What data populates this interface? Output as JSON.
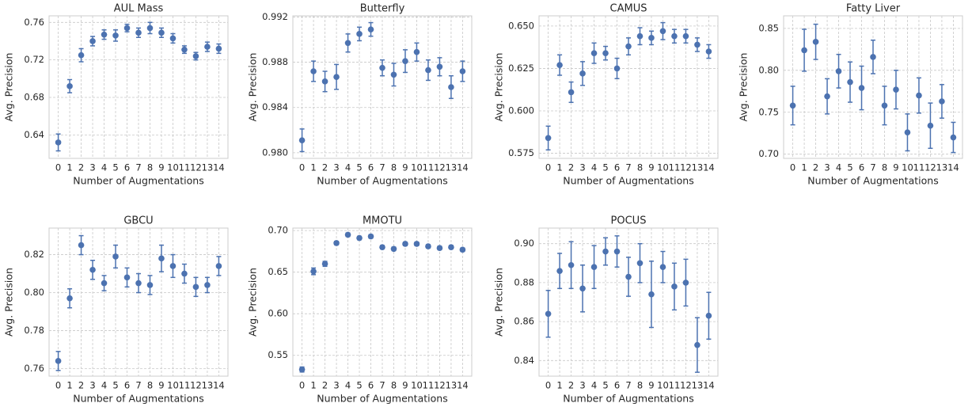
{
  "chart_data": [
    {
      "type": "errorbar",
      "title": "AUL Mass",
      "xlabel": "Number of Augmentations",
      "ylabel": "Avg. Precision",
      "categories": [
        "0",
        "1",
        "2",
        "3",
        "4",
        "5",
        "6",
        "7",
        "8",
        "9",
        "10",
        "11",
        "12",
        "13",
        "14"
      ],
      "values": [
        0.632,
        0.692,
        0.725,
        0.74,
        0.747,
        0.746,
        0.754,
        0.749,
        0.754,
        0.749,
        0.743,
        0.731,
        0.724,
        0.734,
        0.732
      ],
      "errors": [
        0.009,
        0.007,
        0.007,
        0.005,
        0.005,
        0.006,
        0.004,
        0.005,
        0.006,
        0.005,
        0.005,
        0.004,
        0.004,
        0.005,
        0.005
      ],
      "color": "#4c72b0",
      "ylim": [
        0.615,
        0.767
      ],
      "yticks": [
        0.64,
        0.68,
        0.72,
        0.76
      ],
      "grid": true
    },
    {
      "type": "errorbar",
      "title": "Butterfly",
      "xlabel": "Number of Augmentations",
      "ylabel": "Avg. Precision",
      "categories": [
        "0",
        "1",
        "2",
        "3",
        "4",
        "5",
        "6",
        "7",
        "8",
        "9",
        "10",
        "11",
        "12",
        "13",
        "14"
      ],
      "values": [
        0.9811,
        0.9872,
        0.9863,
        0.9867,
        0.9897,
        0.9905,
        0.9909,
        0.9875,
        0.9869,
        0.9881,
        0.9889,
        0.9873,
        0.9876,
        0.9858,
        0.9872
      ],
      "errors": [
        0.001,
        0.0009,
        0.0009,
        0.0011,
        0.0008,
        0.0006,
        0.0006,
        0.0007,
        0.001,
        0.001,
        0.0008,
        0.0009,
        0.0008,
        0.001,
        0.0009
      ],
      "color": "#4c72b0",
      "ylim": [
        0.9795,
        0.9921
      ],
      "yticks": [
        {
          "value": 0.98,
          "label": "0.980"
        },
        0.984,
        0.988,
        0.992
      ],
      "grid": true
    },
    {
      "type": "errorbar",
      "title": "CAMUS",
      "xlabel": "Number of Augmentations",
      "ylabel": "Avg. Precision",
      "categories": [
        "0",
        "1",
        "2",
        "3",
        "4",
        "5",
        "6",
        "7",
        "8",
        "9",
        "10",
        "11",
        "12",
        "13",
        "14"
      ],
      "values": [
        0.584,
        0.627,
        0.611,
        0.622,
        0.634,
        0.634,
        0.625,
        0.638,
        0.644,
        0.643,
        0.647,
        0.644,
        0.644,
        0.639,
        0.635
      ],
      "errors": [
        0.007,
        0.006,
        0.006,
        0.007,
        0.006,
        0.004,
        0.006,
        0.005,
        0.005,
        0.004,
        0.005,
        0.004,
        0.004,
        0.004,
        0.004
      ],
      "color": "#4c72b0",
      "ylim": [
        0.572,
        0.656
      ],
      "yticks": [
        0.575,
        {
          "value": 0.6,
          "label": "0.600"
        },
        0.625,
        {
          "value": 0.65,
          "label": "0.650"
        }
      ],
      "grid": true
    },
    {
      "type": "errorbar",
      "title": "Fatty Liver",
      "xlabel": "Number of Augmentations",
      "ylabel": "Avg. Precision",
      "categories": [
        "0",
        "1",
        "2",
        "3",
        "4",
        "5",
        "6",
        "7",
        "8",
        "9",
        "10",
        "11",
        "12",
        "13",
        "14"
      ],
      "values": [
        0.758,
        0.824,
        0.834,
        0.769,
        0.799,
        0.786,
        0.779,
        0.816,
        0.758,
        0.777,
        0.726,
        0.77,
        0.734,
        0.763,
        0.72
      ],
      "errors": [
        0.023,
        0.025,
        0.021,
        0.021,
        0.02,
        0.024,
        0.026,
        0.02,
        0.023,
        0.023,
        0.022,
        0.021,
        0.027,
        0.02,
        0.018
      ],
      "color": "#4c72b0",
      "ylim": [
        0.695,
        0.865
      ],
      "yticks": [
        {
          "value": 0.7,
          "label": "0.70"
        },
        0.75,
        {
          "value": 0.8,
          "label": "0.80"
        },
        0.85
      ],
      "grid": true
    },
    {
      "type": "errorbar",
      "title": "GBCU",
      "xlabel": "Number of Augmentations",
      "ylabel": "Avg. Precision",
      "categories": [
        "0",
        "1",
        "2",
        "3",
        "4",
        "5",
        "6",
        "7",
        "8",
        "9",
        "10",
        "11",
        "12",
        "13",
        "14"
      ],
      "values": [
        0.764,
        0.797,
        0.825,
        0.812,
        0.805,
        0.819,
        0.808,
        0.805,
        0.804,
        0.818,
        0.814,
        0.81,
        0.803,
        0.804,
        0.814
      ],
      "errors": [
        0.005,
        0.005,
        0.005,
        0.005,
        0.004,
        0.006,
        0.005,
        0.005,
        0.005,
        0.007,
        0.006,
        0.005,
        0.005,
        0.004,
        0.005
      ],
      "color": "#4c72b0",
      "ylim": [
        0.756,
        0.834
      ],
      "yticks": [
        0.76,
        0.78,
        {
          "value": 0.8,
          "label": "0.80"
        },
        0.82
      ],
      "grid": true
    },
    {
      "type": "errorbar",
      "title": "MMOTU",
      "xlabel": "Number of Augmentations",
      "ylabel": "Avg. Precision",
      "categories": [
        "0",
        "1",
        "2",
        "3",
        "4",
        "5",
        "6",
        "7",
        "8",
        "9",
        "10",
        "11",
        "12",
        "13",
        "14"
      ],
      "values": [
        0.533,
        0.651,
        0.66,
        0.685,
        0.695,
        0.691,
        0.693,
        0.68,
        0.678,
        0.684,
        0.684,
        0.681,
        0.679,
        0.68,
        0.677
      ],
      "errors": [
        0.003,
        0.004,
        0.003,
        0.002,
        0.002,
        0.002,
        0.002,
        0.002,
        0.002,
        0.002,
        0.002,
        0.002,
        0.002,
        0.002,
        0.002
      ],
      "color": "#4c72b0",
      "ylim": [
        0.525,
        0.703
      ],
      "yticks": [
        0.55,
        {
          "value": 0.6,
          "label": "0.60"
        },
        0.65,
        {
          "value": 0.7,
          "label": "0.70"
        }
      ],
      "grid": true
    },
    {
      "type": "errorbar",
      "title": "POCUS",
      "xlabel": "Number of Augmentations",
      "ylabel": "Avg. Precision",
      "categories": [
        "0",
        "1",
        "2",
        "3",
        "4",
        "5",
        "6",
        "7",
        "8",
        "9",
        "10",
        "11",
        "12",
        "13",
        "14"
      ],
      "values": [
        0.864,
        0.886,
        0.889,
        0.877,
        0.888,
        0.896,
        0.896,
        0.883,
        0.89,
        0.874,
        0.888,
        0.878,
        0.88,
        0.848,
        0.863
      ],
      "errors": [
        0.012,
        0.009,
        0.012,
        0.012,
        0.011,
        0.007,
        0.008,
        0.01,
        0.01,
        0.017,
        0.008,
        0.012,
        0.012,
        0.014,
        0.012
      ],
      "color": "#4c72b0",
      "ylim": [
        0.832,
        0.908
      ],
      "yticks": [
        0.84,
        0.86,
        0.88,
        {
          "value": 0.9,
          "label": "0.90"
        }
      ],
      "grid": true
    }
  ]
}
